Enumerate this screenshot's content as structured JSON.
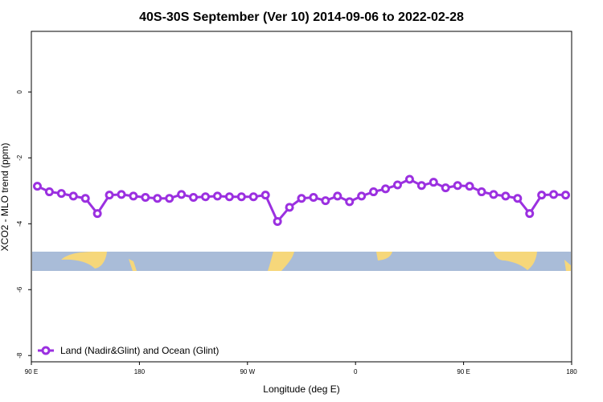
{
  "chart_data": {
    "type": "line",
    "title": "40S-30S September (Ver 10)   2014-09-06 to 2022-02-28",
    "x_label": "Longitude (deg E)",
    "y_label": "XCO2 - MLO trend (ppm)",
    "x": [
      95,
      105,
      115,
      125,
      135,
      145,
      155,
      165,
      175,
      185,
      195,
      205,
      215,
      225,
      235,
      245,
      255,
      265,
      275,
      285,
      295,
      305,
      315,
      325,
      335,
      345,
      355,
      365,
      375,
      385,
      395,
      405,
      415,
      425,
      435,
      445,
      455,
      465,
      475,
      485,
      495,
      505,
      515,
      525,
      535
    ],
    "series": [
      {
        "name": "Land (Nadir&Glint) and Ocean (Glint)",
        "color": "#9b30e0",
        "values": [
          -2.86,
          -3.03,
          -3.08,
          -3.16,
          -3.23,
          -3.69,
          -3.13,
          -3.11,
          -3.16,
          -3.2,
          -3.23,
          -3.23,
          -3.11,
          -3.2,
          -3.18,
          -3.16,
          -3.18,
          -3.18,
          -3.18,
          -3.13,
          -3.93,
          -3.5,
          -3.23,
          -3.2,
          -3.3,
          -3.16,
          -3.33,
          -3.16,
          -3.03,
          -2.94,
          -2.82,
          -2.65,
          -2.84,
          -2.74,
          -2.91,
          -2.84,
          -2.86,
          -3.03,
          -3.11,
          -3.16,
          -3.23,
          -3.69,
          -3.13,
          -3.11,
          -3.13
        ]
      }
    ],
    "xlim": [
      90,
      540
    ],
    "xticks": [
      {
        "value": 90,
        "label": "90 E"
      },
      180,
      {
        "value": 270,
        "label": "90 W"
      },
      {
        "value": 360,
        "label": "0"
      },
      {
        "value": 450,
        "label": "90 E"
      },
      {
        "value": 540,
        "label": "180"
      }
    ],
    "ylim": [
      -8.19,
      1.84
    ],
    "yticks": [
      0,
      -2,
      -4,
      -6,
      -8
    ],
    "legend": "bottom-left"
  }
}
